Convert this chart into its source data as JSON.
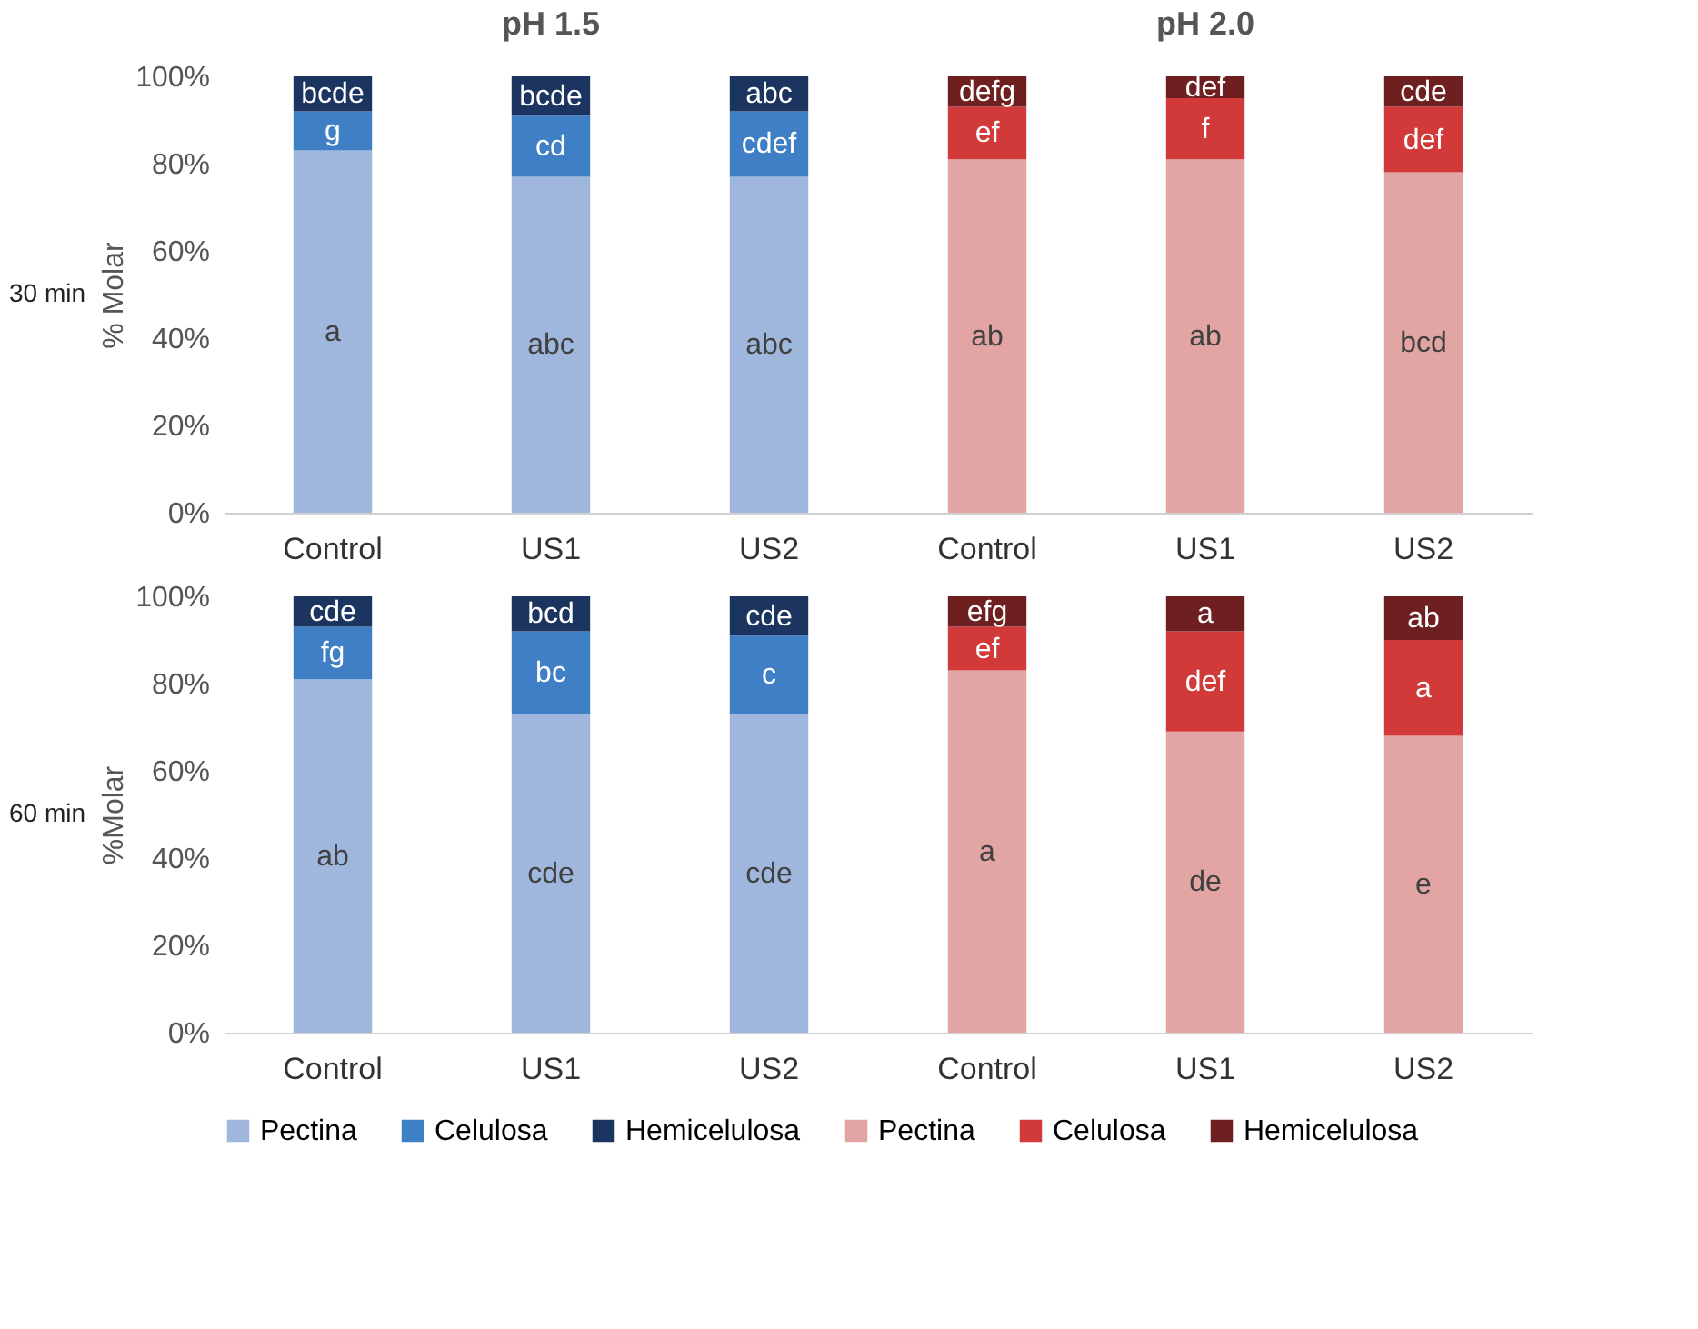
{
  "chart_data": [
    {
      "type": "bar",
      "stacked": true,
      "title": "30 min",
      "ylabel": "% Molar",
      "annotations": [
        "pH 1.5",
        "pH 2.0"
      ],
      "categories": [
        "Control",
        "US1",
        "US2",
        "Control",
        "US1",
        "US2"
      ],
      "ylim": [
        0,
        100
      ],
      "yticks": [
        {
          "value": 0,
          "label": "0%"
        },
        {
          "value": 20,
          "label": "20%"
        },
        {
          "value": 40,
          "label": "40%"
        },
        {
          "value": 60,
          "label": "60%"
        },
        {
          "value": 80,
          "label": "80%"
        },
        {
          "value": 100,
          "label": "100%"
        }
      ],
      "legend": false,
      "series": [
        {
          "color": "#9fb6dd",
          "values": [
            83,
            77,
            77,
            null,
            null,
            null
          ],
          "value_labels": [
            "a",
            "abc",
            "abc",
            null,
            null,
            null
          ]
        },
        {
          "color": "#3f7fc6",
          "values": [
            9,
            14,
            15,
            null,
            null,
            null
          ],
          "value_labels": [
            "g",
            "cd",
            "cdef",
            null,
            null,
            null
          ]
        },
        {
          "color": "#1c3560",
          "values": [
            8,
            9,
            8,
            null,
            null,
            null
          ],
          "value_labels": [
            "bcde",
            "bcde",
            "abc",
            null,
            null,
            null
          ]
        },
        {
          "color": "#e3a4a4",
          "values": [
            null,
            null,
            null,
            81,
            81,
            78
          ],
          "value_labels": [
            null,
            null,
            null,
            "ab",
            "ab",
            "bcd"
          ]
        },
        {
          "color": "#d23a3a",
          "values": [
            null,
            null,
            null,
            12,
            14,
            15
          ],
          "value_labels": [
            null,
            null,
            null,
            "ef",
            "f",
            "def"
          ]
        },
        {
          "color": "#6e1f1f",
          "values": [
            null,
            null,
            null,
            7,
            5,
            7
          ],
          "value_labels": [
            null,
            null,
            null,
            "defg",
            "def",
            "cde"
          ]
        }
      ]
    },
    {
      "type": "bar",
      "stacked": true,
      "title": "60 min",
      "ylabel": "%Molar",
      "categories": [
        "Control",
        "US1",
        "US2",
        "Control",
        "US1",
        "US2"
      ],
      "ylim": [
        0,
        100
      ],
      "yticks": [
        {
          "value": 0,
          "label": "0%"
        },
        {
          "value": 20,
          "label": "20%"
        },
        {
          "value": 40,
          "label": "40%"
        },
        {
          "value": 60,
          "label": "60%"
        },
        {
          "value": 80,
          "label": "80%"
        },
        {
          "value": 100,
          "label": "100%"
        }
      ],
      "legend": "bottom",
      "series": [
        {
          "name": "Pectina",
          "color": "#9fb6dd",
          "values": [
            81,
            73,
            73,
            null,
            null,
            null
          ],
          "value_labels": [
            "ab",
            "cde",
            "cde",
            null,
            null,
            null
          ]
        },
        {
          "name": "Celulosa",
          "color": "#3f7fc6",
          "values": [
            12,
            19,
            18,
            null,
            null,
            null
          ],
          "value_labels": [
            "fg",
            "bc",
            "c",
            null,
            null,
            null
          ]
        },
        {
          "name": "Hemicelulosa",
          "color": "#1c3560",
          "values": [
            7,
            8,
            9,
            null,
            null,
            null
          ],
          "value_labels": [
            "cde",
            "bcd",
            "cde",
            null,
            null,
            null
          ]
        },
        {
          "name": "Pectina",
          "color": "#e3a4a4",
          "values": [
            null,
            null,
            null,
            83,
            69,
            68
          ],
          "value_labels": [
            null,
            null,
            null,
            "a",
            "de",
            "e"
          ]
        },
        {
          "name": "Celulosa",
          "color": "#d23a3a",
          "values": [
            null,
            null,
            null,
            10,
            23,
            22
          ],
          "value_labels": [
            null,
            null,
            null,
            "ef",
            "def",
            "a"
          ]
        },
        {
          "name": "Hemicelulosa",
          "color": "#6e1f1f",
          "values": [
            null,
            null,
            null,
            7,
            8,
            10
          ],
          "value_labels": [
            null,
            null,
            null,
            "efg",
            "a",
            "ab"
          ]
        }
      ]
    }
  ]
}
